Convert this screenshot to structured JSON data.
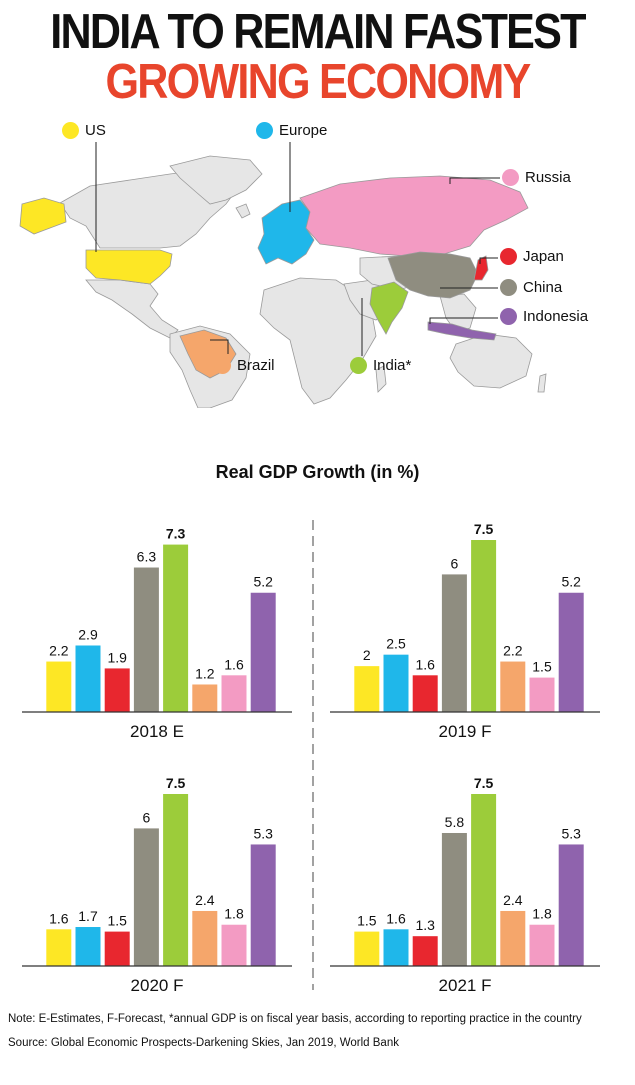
{
  "header": {
    "title_line1": "INDIA TO REMAIN FASTEST",
    "title_line2": "GROWING ECONOMY"
  },
  "legend": [
    {
      "key": "us",
      "label": "US",
      "color": "#fde725"
    },
    {
      "key": "europe",
      "label": "Europe",
      "color": "#1fb7ea"
    },
    {
      "key": "russia",
      "label": "Russia",
      "color": "#f39bc3"
    },
    {
      "key": "japan",
      "label": "Japan",
      "color": "#e8272f"
    },
    {
      "key": "china",
      "label": "China",
      "color": "#8f8d80"
    },
    {
      "key": "indonesia",
      "label": "Indonesia",
      "color": "#8f63ad"
    },
    {
      "key": "india",
      "label": "India*",
      "color": "#9ccc3a"
    },
    {
      "key": "brazil",
      "label": "Brazil",
      "color": "#f5a66b"
    }
  ],
  "colors": {
    "land": "#e6e6e6",
    "land_border": "#9a9a9a",
    "axis": "#333333",
    "title_red": "#e8452c"
  },
  "chart_data": {
    "type": "bar",
    "title": "Real GDP Growth (in %)",
    "series_order": [
      "US",
      "Europe",
      "Japan",
      "China",
      "India*",
      "Brazil",
      "Russia",
      "Indonesia"
    ],
    "panels": [
      {
        "label": "2018 E",
        "values": [
          2.2,
          2.9,
          1.9,
          6.3,
          7.3,
          1.2,
          1.6,
          5.2
        ]
      },
      {
        "label": "2019 F",
        "values": [
          2,
          2.5,
          1.6,
          6,
          7.5,
          2.2,
          1.5,
          5.2
        ]
      },
      {
        "label": "2020 F",
        "values": [
          1.6,
          1.7,
          1.5,
          6,
          7.5,
          2.4,
          1.8,
          5.3
        ]
      },
      {
        "label": "2021 F",
        "values": [
          1.5,
          1.6,
          1.3,
          5.8,
          7.5,
          2.4,
          1.8,
          5.3
        ]
      }
    ],
    "value_labels": [
      [
        "2.2",
        "2.9",
        "1.9",
        "6.3",
        "7.3",
        "1.2",
        "1.6",
        "5.2"
      ],
      [
        "2",
        "2.5",
        "1.6",
        "6",
        "7.5",
        "2.2",
        "1.5",
        "5.2"
      ],
      [
        "1.6",
        "1.7",
        "1.5",
        "6",
        "7.5",
        "2.4",
        "1.8",
        "5.3"
      ],
      [
        "1.5",
        "1.6",
        "1.3",
        "5.8",
        "7.5",
        "2.4",
        "1.8",
        "5.3"
      ]
    ],
    "highlight_series": "India*",
    "ylim": [
      0,
      7.5
    ],
    "grid": false
  },
  "footer": {
    "note": "Note: E-Estimates, F-Forecast, *annual GDP is on fiscal year basis, according to reporting practice in the country",
    "source": "Source: Global Economic Prospects-Darkening Skies, Jan 2019, World Bank"
  }
}
